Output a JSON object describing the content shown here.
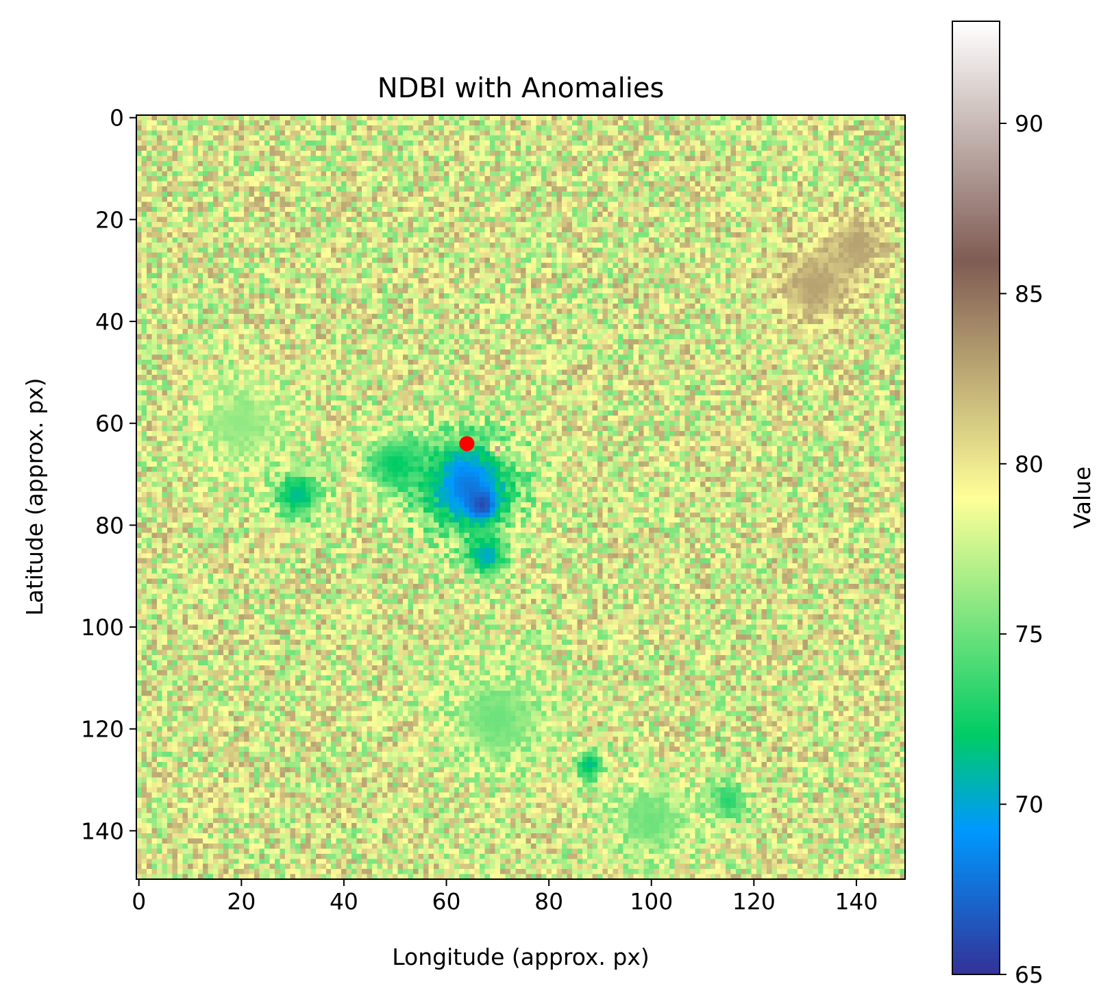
{
  "chart_data": {
    "type": "heatmap",
    "title": "NDBI with Anomalies",
    "xlabel": "Longitude (approx. px)",
    "ylabel": "Latitude (approx. px)",
    "grid_size": [
      150,
      150
    ],
    "xlim": [
      0,
      150
    ],
    "ylim": [
      150,
      0
    ],
    "xticks": [
      0,
      20,
      40,
      60,
      80,
      100,
      120,
      140
    ],
    "yticks": [
      0,
      20,
      40,
      60,
      80,
      100,
      120,
      140
    ],
    "xtick_labels": [
      "0",
      "20",
      "40",
      "60",
      "80",
      "100",
      "120",
      "140"
    ],
    "ytick_labels": [
      "0",
      "20",
      "40",
      "60",
      "80",
      "100",
      "120",
      "140"
    ],
    "colorbar": {
      "label": "Value",
      "range": [
        65,
        93
      ],
      "ticks": [
        65,
        70,
        75,
        80,
        85,
        90
      ],
      "tick_labels": [
        "65",
        "70",
        "75",
        "80",
        "85",
        "90"
      ],
      "colormap": "terrain"
    },
    "field": {
      "base_value": 79,
      "noise_amplitude": 4,
      "features": [
        {
          "kind": "anomaly_low",
          "center": [
            64,
            72
          ],
          "radius": 10,
          "value": 68
        },
        {
          "kind": "anomaly_low",
          "center": [
            31,
            74
          ],
          "radius": 5,
          "value": 71
        },
        {
          "kind": "anomaly_low",
          "center": [
            50,
            68
          ],
          "radius": 6,
          "value": 72
        },
        {
          "kind": "anomaly_low",
          "center": [
            67,
            76
          ],
          "radius": 3,
          "value": 66
        },
        {
          "kind": "anomaly_low",
          "center": [
            68,
            86
          ],
          "radius": 4,
          "value": 70
        },
        {
          "kind": "anomaly_low",
          "center": [
            88,
            127
          ],
          "radius": 3,
          "value": 71
        },
        {
          "kind": "anomaly_low",
          "center": [
            115,
            134
          ],
          "radius": 4,
          "value": 73
        },
        {
          "kind": "band_low",
          "center": [
            70,
            118
          ],
          "radius": 10,
          "value": 75
        },
        {
          "kind": "band_low",
          "center": [
            100,
            138
          ],
          "radius": 8,
          "value": 75
        },
        {
          "kind": "band_low",
          "center": [
            20,
            60
          ],
          "radius": 9,
          "value": 76
        },
        {
          "kind": "high",
          "center": [
            132,
            33
          ],
          "radius": 8,
          "value": 83
        },
        {
          "kind": "high",
          "center": [
            140,
            25
          ],
          "radius": 6,
          "value": 83
        },
        {
          "kind": "high",
          "center": [
            70,
            65
          ],
          "radius": 1,
          "value": 89
        }
      ]
    },
    "markers": [
      {
        "name": "anomaly-point",
        "x": 64,
        "y": 64,
        "color": "#ff0000"
      }
    ]
  }
}
